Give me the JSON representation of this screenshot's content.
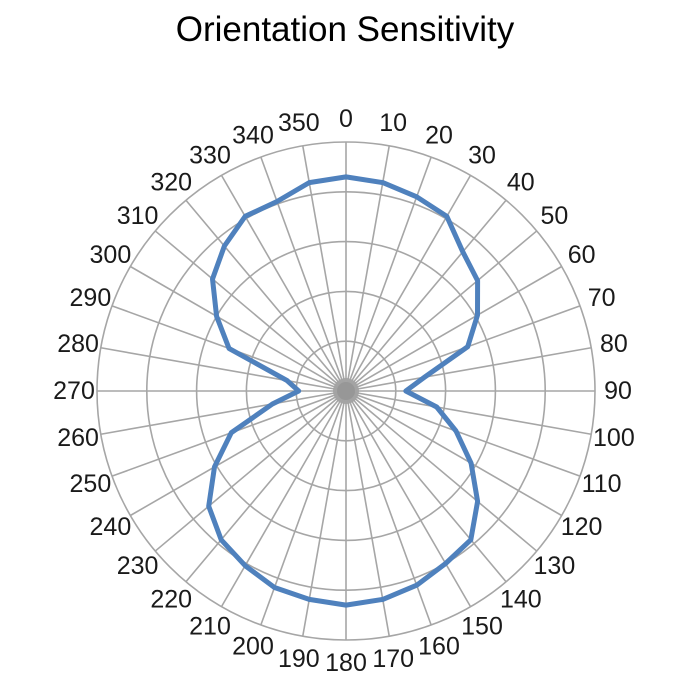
{
  "chart_data": {
    "type": "polar",
    "title": "Orientation Sensitivity",
    "categories": [
      "0",
      "10",
      "20",
      "30",
      "40",
      "50",
      "60",
      "70",
      "80",
      "90",
      "100",
      "110",
      "120",
      "130",
      "140",
      "150",
      "160",
      "170",
      "180",
      "190",
      "200",
      "210",
      "220",
      "230",
      "240",
      "250",
      "260",
      "270",
      "280",
      "290",
      "300",
      "310",
      "320",
      "330",
      "340",
      "350"
    ],
    "values": [
      0.86,
      0.85,
      0.83,
      0.81,
      0.73,
      0.69,
      0.61,
      0.52,
      0.32,
      0.24,
      0.37,
      0.47,
      0.58,
      0.69,
      0.78,
      0.8,
      0.83,
      0.85,
      0.86,
      0.85,
      0.84,
      0.81,
      0.78,
      0.72,
      0.61,
      0.49,
      0.3,
      0.19,
      0.24,
      0.5,
      0.6,
      0.7,
      0.76,
      0.81,
      0.81,
      0.85
    ],
    "rmax": 1.0,
    "radial_gridline_count": 5,
    "angle_step_deg": 10,
    "grid_on": true,
    "legend": "none",
    "series_color": "#4f81bd",
    "grid_color": "#a6a6a6",
    "label_color": "#1a1a1a",
    "title_color": "#000000"
  }
}
